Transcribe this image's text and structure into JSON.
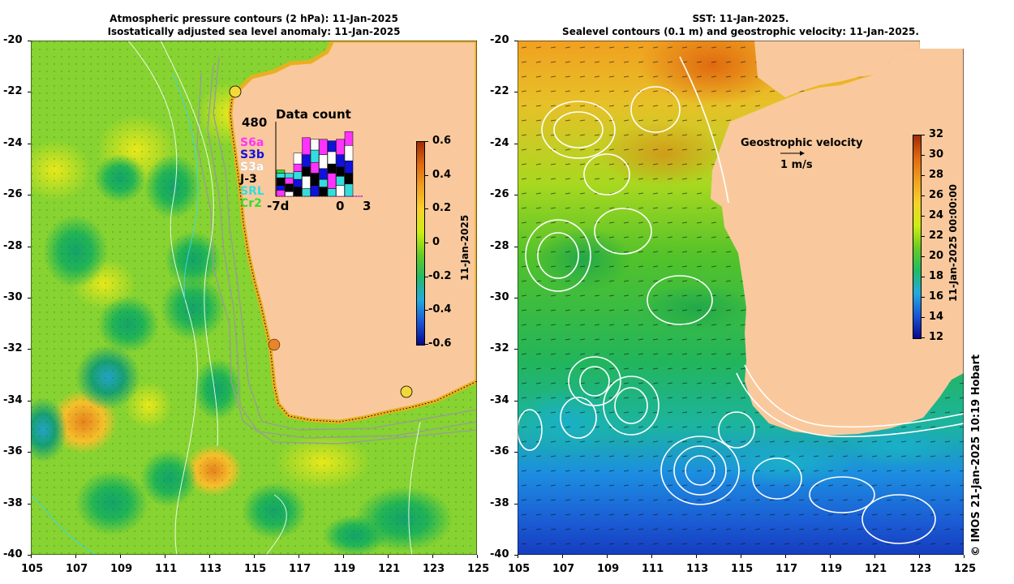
{
  "left_panel": {
    "title_line1": "Atmospheric pressure contours (2 hPa): 11-Jan-2025",
    "title_line2": "Isostatically adjusted sea level anomaly: 11-Jan-2025",
    "colorbar_label": "11-Jan-2025",
    "colorbar_ticks": [
      "0.6",
      "0.4",
      "0.2",
      "0",
      "-0.2",
      "-0.4",
      "-0.6"
    ],
    "colorbar_range": [
      -0.6,
      0.6
    ],
    "inset": {
      "title": "Data count",
      "max_label": "480",
      "x_labels": [
        "-7d",
        "0",
        "3"
      ],
      "satellites": [
        {
          "name": "S6a",
          "color": "#ff33ff"
        },
        {
          "name": "S3b",
          "color": "#1111dd"
        },
        {
          "name": "S3a",
          "color": "#ffffff"
        },
        {
          "name": "J-3",
          "color": "#000000"
        },
        {
          "name": "SRL",
          "color": "#33dddd"
        },
        {
          "name": "Cr2",
          "color": "#33dd33"
        }
      ]
    }
  },
  "right_panel": {
    "title_line1": "SST: 11-Jan-2025.",
    "title_line2": "Sealevel contours (0.1 m) and geostrophic velocity: 11-Jan-2025.",
    "colorbar_label": "11-Jan-2025 00:00:00",
    "colorbar_ticks": [
      "32",
      "30",
      "28",
      "26",
      "24",
      "22",
      "20",
      "18",
      "16",
      "14",
      "12"
    ],
    "colorbar_range": [
      12,
      32
    ],
    "velocity_label": "Geostrophic velocity",
    "velocity_scale": "1 m/s"
  },
  "axes": {
    "y_ticks": [
      "-20",
      "-22",
      "-24",
      "-26",
      "-28",
      "-30",
      "-32",
      "-34",
      "-36",
      "-38",
      "-40"
    ],
    "x_ticks": [
      "105",
      "107",
      "109",
      "111",
      "113",
      "115",
      "117",
      "119",
      "121",
      "123",
      "125"
    ]
  },
  "credit": "© IMOS 21-Jan-2025 10:19 Hobart",
  "colors": {
    "land": "#f9c99d",
    "ssla_gradient": [
      "#08088e",
      "#1a56d6",
      "#22aadd",
      "#22bb66",
      "#66cc22",
      "#ccee11",
      "#f8d22a",
      "#f0a020",
      "#e06a10",
      "#a02c05"
    ],
    "sst_gradient": [
      "#08088e",
      "#1a56d6",
      "#22aadd",
      "#22bb66",
      "#66cc22",
      "#ccee11",
      "#f8d22a",
      "#f0a020",
      "#e06a10",
      "#a02c05"
    ]
  }
}
